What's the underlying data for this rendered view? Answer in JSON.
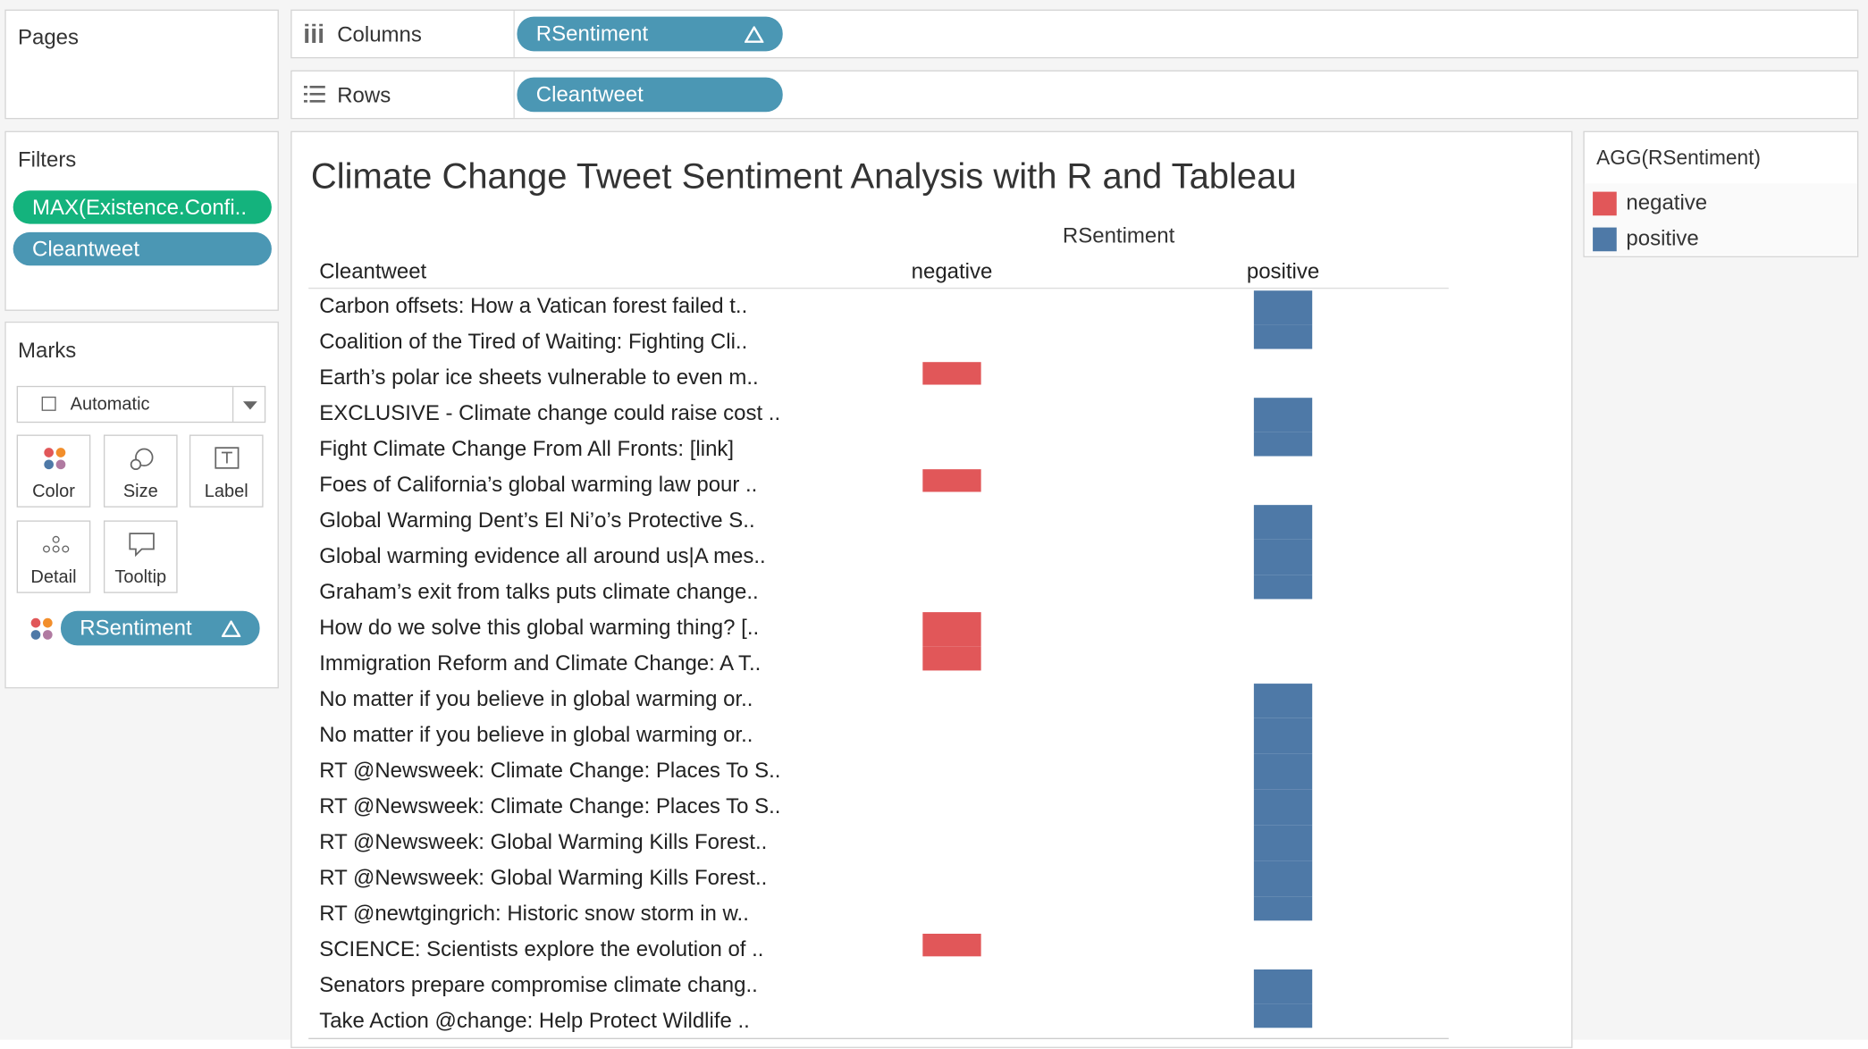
{
  "shelves": {
    "pages": "Pages",
    "columns_label": "Columns",
    "columns_pill": "RSentiment",
    "rows_label": "Rows",
    "rows_pill": "Cleantweet"
  },
  "filters": {
    "title": "Filters",
    "pills": [
      "MAX(Existence.Confi..",
      "Cleantweet"
    ]
  },
  "marks": {
    "title": "Marks",
    "mark_type": "Automatic",
    "buttons": [
      "Color",
      "Size",
      "Label",
      "Detail",
      "Tooltip"
    ],
    "color_pill": "RSentiment"
  },
  "view": {
    "title": "Climate Change Tweet Sentiment Analysis with R and Tableau",
    "column_header": "RSentiment",
    "row_header": "Cleantweet",
    "columns": [
      "negative",
      "positive"
    ],
    "rows": [
      {
        "text": "Carbon offsets: How a Vatican forest failed t..",
        "sentiment": "positive"
      },
      {
        "text": "Coalition of the Tired of Waiting: Fighting Cli..",
        "sentiment": "positive"
      },
      {
        "text": "Earth’s polar ice sheets vulnerable to even m..",
        "sentiment": "negative"
      },
      {
        "text": "EXCLUSIVE - Climate change could raise cost ..",
        "sentiment": "positive"
      },
      {
        "text": "Fight Climate Change From All Fronts: [link]",
        "sentiment": "positive"
      },
      {
        "text": "Foes of California’s global warming law pour ..",
        "sentiment": "negative"
      },
      {
        "text": "Global Warming Dent’s El Ni’o’s Protective S..",
        "sentiment": "positive"
      },
      {
        "text": "Global warming evidence all around us|A mes..",
        "sentiment": "positive"
      },
      {
        "text": "Graham’s exit from talks puts climate change..",
        "sentiment": "positive"
      },
      {
        "text": "How do we solve this global warming thing? [..",
        "sentiment": "negative"
      },
      {
        "text": "Immigration Reform and Climate Change: A T..",
        "sentiment": "negative"
      },
      {
        "text": "No matter if you believe in global warming or..",
        "sentiment": "positive"
      },
      {
        "text": "No matter if you believe in global warming or..",
        "sentiment": "positive"
      },
      {
        "text": "RT @Newsweek: Climate Change: Places To S..",
        "sentiment": "positive"
      },
      {
        "text": "RT @Newsweek: Climate Change: Places To S..",
        "sentiment": "positive"
      },
      {
        "text": "RT @Newsweek: Global Warming Kills Forest..",
        "sentiment": "positive"
      },
      {
        "text": "RT @Newsweek: Global Warming Kills Forest..",
        "sentiment": "positive"
      },
      {
        "text": "RT @newtgingrich: Historic snow storm in w..",
        "sentiment": "positive"
      },
      {
        "text": "SCIENCE: Scientists explore the evolution of ..",
        "sentiment": "negative"
      },
      {
        "text": "Senators prepare compromise climate chang..",
        "sentiment": "positive"
      },
      {
        "text": "Take Action @change: Help Protect Wildlife ..",
        "sentiment": "positive"
      }
    ]
  },
  "legend": {
    "title": "AGG(RSentiment)",
    "items": [
      {
        "label": "negative",
        "color": "#e15759"
      },
      {
        "label": "positive",
        "color": "#4e79a7"
      }
    ]
  }
}
